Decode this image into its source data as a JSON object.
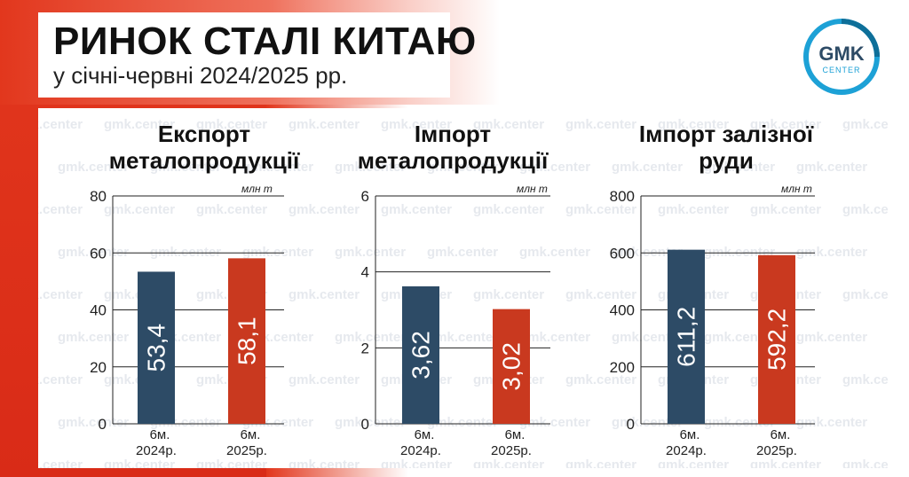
{
  "header": {
    "title": "РИНОК СТАЛІ КИТАЮ",
    "subtitle": "у січні-червні 2024/2025 рр."
  },
  "logo": {
    "top": "GMK",
    "bottom": "CENTER"
  },
  "watermark_text": "gmk.center",
  "colors": {
    "series_2024": "#2d4b66",
    "series_2025": "#c9391f",
    "logo_ring": "#1da1d6",
    "background_red": "#e2371d"
  },
  "chart_data": [
    {
      "type": "bar",
      "title": "Експорт металопродукції",
      "unit": "млн т",
      "categories": [
        "6м. 2024р.",
        "6м. 2025р."
      ],
      "values": [
        53.4,
        58.1
      ],
      "value_labels": [
        "53,4",
        "58,1"
      ],
      "ylim": [
        0,
        80
      ],
      "yticks": [
        0,
        20,
        40,
        60,
        80
      ],
      "grid": true
    },
    {
      "type": "bar",
      "title": "Імпорт металопродукції",
      "unit": "млн т",
      "categories": [
        "6м. 2024р.",
        "6м. 2025р."
      ],
      "values": [
        3.62,
        3.02
      ],
      "value_labels": [
        "3,62",
        "3,02"
      ],
      "ylim": [
        0,
        6
      ],
      "yticks": [
        0,
        2,
        4,
        6
      ],
      "grid": true
    },
    {
      "type": "bar",
      "title": "Імпорт залізної руди",
      "unit": "млн т",
      "categories": [
        "6м. 2024р.",
        "6м. 2025р."
      ],
      "values": [
        611.2,
        592.2
      ],
      "value_labels": [
        "611,2",
        "592,2"
      ],
      "ylim": [
        0,
        800
      ],
      "yticks": [
        0,
        200,
        400,
        600,
        800
      ],
      "grid": true
    }
  ]
}
